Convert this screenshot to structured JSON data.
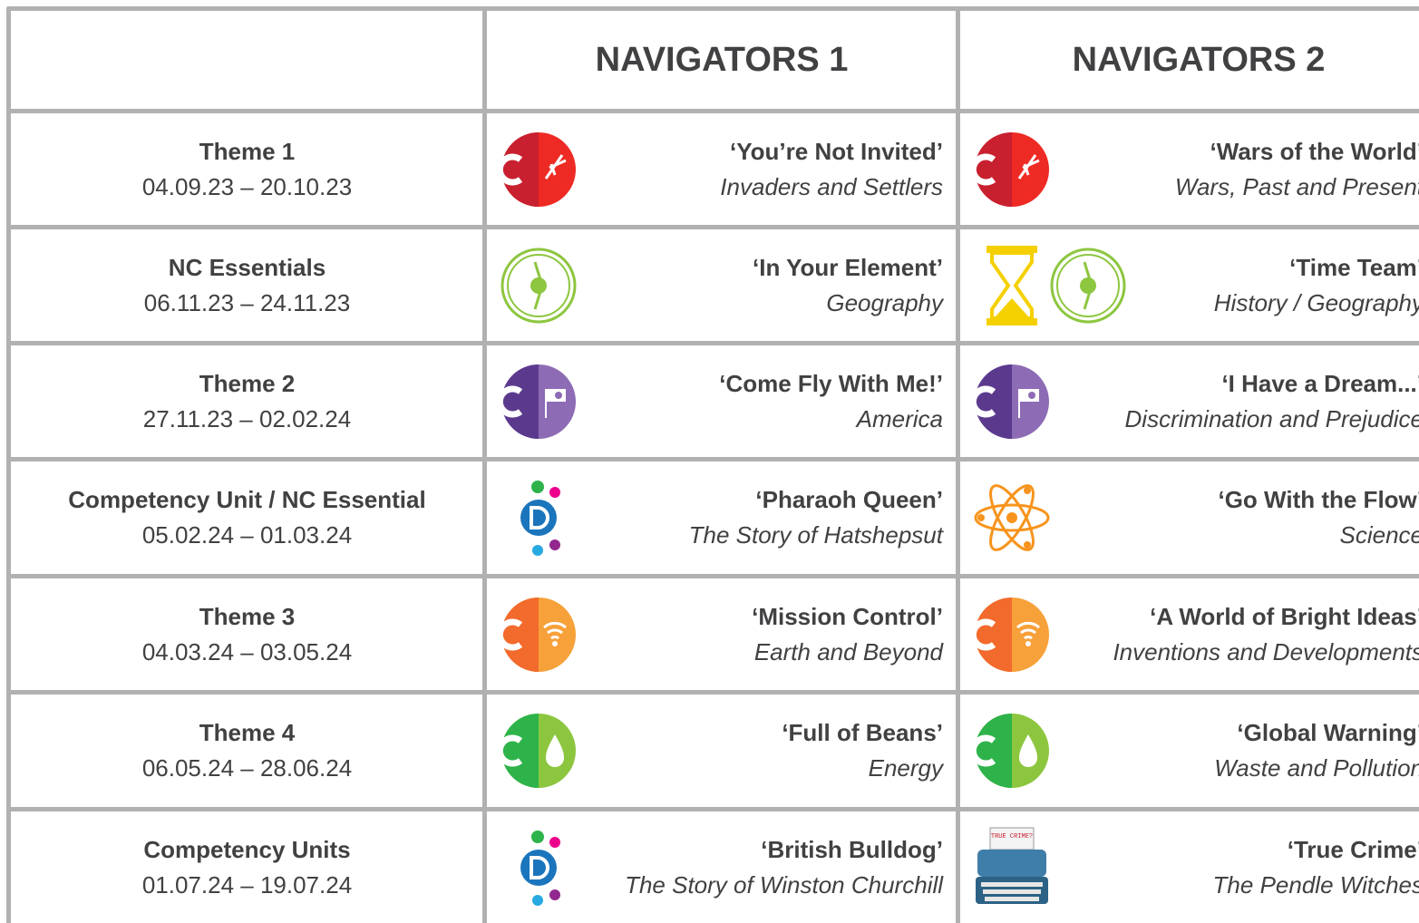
{
  "header": {
    "columns": [
      "NAVIGATORS 1",
      "NAVIGATORS 2"
    ]
  },
  "rows": [
    {
      "label": "Theme 1",
      "dates": "04.09.23 – 20.10.23",
      "n1": {
        "title": "‘You’re Not Invited’",
        "subtitle": "Invaders and Settlers"
      },
      "n2": {
        "title": "‘Wars of the World’",
        "subtitle": "Wars, Past and Present"
      }
    },
    {
      "label": "NC Essentials",
      "dates": "06.11.23 – 24.11.23",
      "n1": {
        "title": "‘In Your Element’",
        "subtitle": "Geography"
      },
      "n2": {
        "title": "‘Time Team’",
        "subtitle": "History / Geography"
      }
    },
    {
      "label": "Theme 2",
      "dates": "27.11.23 – 02.02.24",
      "n1": {
        "title": "‘Come Fly With Me!’",
        "subtitle": "America"
      },
      "n2": {
        "title": "‘I Have a Dream...’",
        "subtitle": "Discrimination and Prejudice"
      }
    },
    {
      "label": "Competency Unit / NC Essential",
      "dates": "05.02.24 – 01.03.24",
      "n1": {
        "title": "‘Pharaoh Queen’",
        "subtitle": "The Story of Hatshepsut"
      },
      "n2": {
        "title": "‘Go With the Flow’",
        "subtitle": "Science"
      }
    },
    {
      "label": "Theme 3",
      "dates": "04.03.24 – 03.05.24",
      "n1": {
        "title": "‘Mission Control’",
        "subtitle": "Earth and Beyond"
      },
      "n2": {
        "title": "‘A World of Bright Ideas’",
        "subtitle": "Inventions and Developments"
      }
    },
    {
      "label": "Theme 4",
      "dates": "06.05.24 – 28.06.24",
      "n1": {
        "title": "‘Full of Beans’",
        "subtitle": "Energy"
      },
      "n2": {
        "title": "‘Global Warning’",
        "subtitle": "Waste and Pollution"
      }
    },
    {
      "label": "Competency Units",
      "dates": "01.07.24 – 19.07.24",
      "n1": {
        "title": "‘British Bulldog’",
        "subtitle": "The Story of Winston Churchill"
      },
      "n2": {
        "title": "‘True Crime’",
        "subtitle": "The Pendle Witches",
        "icon_text": "TRUE CRIME?"
      }
    }
  ]
}
